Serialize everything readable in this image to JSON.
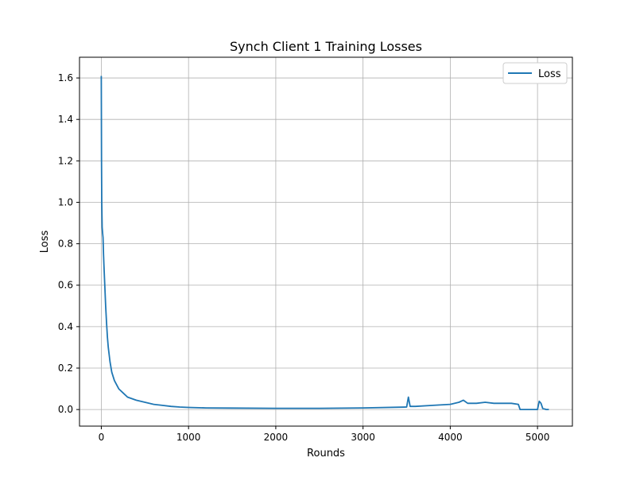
{
  "chart_data": {
    "type": "line",
    "title": "Synch Client 1 Training Losses",
    "xlabel": "Rounds",
    "ylabel": "Loss",
    "xlim": [
      -250,
      5400
    ],
    "ylim": [
      -0.08,
      1.7
    ],
    "xticks": [
      0,
      1000,
      2000,
      3000,
      4000,
      5000
    ],
    "yticks": [
      0.0,
      0.2,
      0.4,
      0.6,
      0.8,
      1.0,
      1.2,
      1.4,
      1.6
    ],
    "ytick_labels": [
      "0.0",
      "0.2",
      "0.4",
      "0.6",
      "0.8",
      "1.0",
      "1.2",
      "1.4",
      "1.6"
    ],
    "grid": true,
    "legend_position": "top-right",
    "series": [
      {
        "name": "Loss",
        "color": "#1f77b4",
        "x": [
          0,
          2,
          5,
          10,
          15,
          20,
          25,
          30,
          40,
          50,
          60,
          70,
          80,
          100,
          120,
          150,
          200,
          250,
          300,
          400,
          500,
          600,
          700,
          800,
          900,
          1000,
          1200,
          1500,
          2000,
          2500,
          3000,
          3500,
          3520,
          3540,
          3600,
          3800,
          4000,
          4100,
          4150,
          4200,
          4300,
          4400,
          4500,
          4600,
          4700,
          4780,
          4800,
          5000,
          5020,
          5040,
          5060,
          5100,
          5130
        ],
        "values": [
          1.61,
          1.2,
          1.0,
          0.88,
          0.85,
          0.83,
          0.75,
          0.7,
          0.6,
          0.5,
          0.42,
          0.35,
          0.3,
          0.23,
          0.18,
          0.14,
          0.1,
          0.08,
          0.06,
          0.045,
          0.035,
          0.025,
          0.02,
          0.015,
          0.012,
          0.01,
          0.008,
          0.007,
          0.006,
          0.006,
          0.008,
          0.012,
          0.06,
          0.015,
          0.015,
          0.02,
          0.025,
          0.035,
          0.045,
          0.03,
          0.03,
          0.035,
          0.03,
          0.03,
          0.03,
          0.025,
          0.0,
          0.0,
          0.04,
          0.03,
          0.005,
          0.0,
          0.0
        ]
      }
    ]
  }
}
